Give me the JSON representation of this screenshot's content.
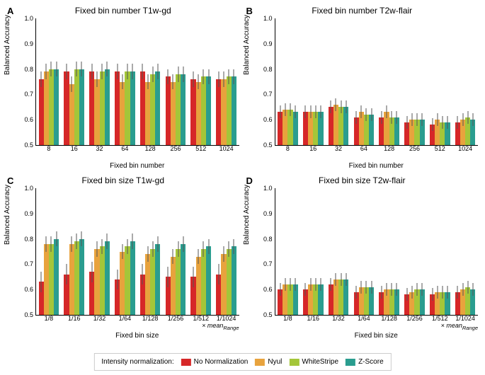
{
  "legend": {
    "title": "Intensity normalization:",
    "items": [
      {
        "label": "No Normalization",
        "color": "#d62728"
      },
      {
        "label": "Nyul",
        "color": "#e8a33d"
      },
      {
        "label": "WhiteStripe",
        "color": "#a4c639"
      },
      {
        "label": "Z-Score",
        "color": "#2a9d8f"
      }
    ]
  },
  "y": {
    "label": "Balanced Accuracy",
    "min": 0.5,
    "max": 1.0,
    "ticks": [
      0.5,
      0.6,
      0.7,
      0.8,
      0.9,
      1.0
    ]
  },
  "panels": [
    {
      "letter": "A",
      "title": "Fixed bin number T1w-gd",
      "xlabel": "Fixed bin number",
      "xannot": "",
      "categories": [
        "8",
        "16",
        "32",
        "64",
        "128",
        "256",
        "512",
        "1024"
      ],
      "series": [
        {
          "values": [
            0.76,
            0.79,
            0.79,
            0.79,
            0.79,
            0.77,
            0.76,
            0.76
          ],
          "err": 0.03
        },
        {
          "values": [
            0.79,
            0.74,
            0.76,
            0.75,
            0.75,
            0.75,
            0.75,
            0.76
          ],
          "err": 0.03
        },
        {
          "values": [
            0.8,
            0.8,
            0.79,
            0.79,
            0.78,
            0.78,
            0.77,
            0.77
          ],
          "err": 0.03
        },
        {
          "values": [
            0.8,
            0.8,
            0.8,
            0.79,
            0.79,
            0.78,
            0.77,
            0.77
          ],
          "err": 0.03
        }
      ]
    },
    {
      "letter": "B",
      "title": "Fixed bin number T2w-flair",
      "xlabel": "Fixed bin number",
      "xannot": "",
      "categories": [
        "8",
        "16",
        "32",
        "64",
        "128",
        "256",
        "512",
        "1024"
      ],
      "series": [
        {
          "values": [
            0.63,
            0.63,
            0.65,
            0.61,
            0.61,
            0.59,
            0.58,
            0.59
          ],
          "err": 0.025
        },
        {
          "values": [
            0.64,
            0.63,
            0.66,
            0.63,
            0.63,
            0.6,
            0.6,
            0.6
          ],
          "err": 0.025
        },
        {
          "values": [
            0.64,
            0.63,
            0.65,
            0.62,
            0.61,
            0.6,
            0.59,
            0.61
          ],
          "err": 0.025
        },
        {
          "values": [
            0.63,
            0.63,
            0.65,
            0.62,
            0.61,
            0.6,
            0.59,
            0.6
          ],
          "err": 0.025
        }
      ]
    },
    {
      "letter": "C",
      "title": "Fixed bin size T1w-gd",
      "xlabel": "Fixed bin size",
      "xannot": "× meanRange",
      "categories": [
        "1/8",
        "1/16",
        "1/32",
        "1/64",
        "1/128",
        "1/256",
        "1/512",
        "1/1024"
      ],
      "series": [
        {
          "values": [
            0.63,
            0.66,
            0.67,
            0.64,
            0.66,
            0.65,
            0.65,
            0.66
          ],
          "err": 0.04
        },
        {
          "values": [
            0.78,
            0.78,
            0.76,
            0.75,
            0.74,
            0.73,
            0.73,
            0.74
          ],
          "err": 0.03
        },
        {
          "values": [
            0.78,
            0.79,
            0.77,
            0.77,
            0.76,
            0.76,
            0.76,
            0.76
          ],
          "err": 0.03
        },
        {
          "values": [
            0.8,
            0.8,
            0.79,
            0.79,
            0.78,
            0.78,
            0.77,
            0.77
          ],
          "err": 0.03
        }
      ]
    },
    {
      "letter": "D",
      "title": "Fixed bin size T2w-flair",
      "xlabel": "Fixed bin size",
      "xannot": "× meanRange",
      "categories": [
        "1/8",
        "1/16",
        "1/32",
        "1/64",
        "1/128",
        "1/256",
        "1/512",
        "1/1024"
      ],
      "series": [
        {
          "values": [
            0.6,
            0.6,
            0.62,
            0.59,
            0.59,
            0.58,
            0.58,
            0.59
          ],
          "err": 0.025
        },
        {
          "values": [
            0.62,
            0.62,
            0.64,
            0.61,
            0.6,
            0.59,
            0.59,
            0.6
          ],
          "err": 0.025
        },
        {
          "values": [
            0.62,
            0.62,
            0.64,
            0.61,
            0.6,
            0.6,
            0.59,
            0.61
          ],
          "err": 0.025
        },
        {
          "values": [
            0.62,
            0.62,
            0.64,
            0.61,
            0.6,
            0.6,
            0.59,
            0.6
          ],
          "err": 0.025
        }
      ]
    }
  ]
}
